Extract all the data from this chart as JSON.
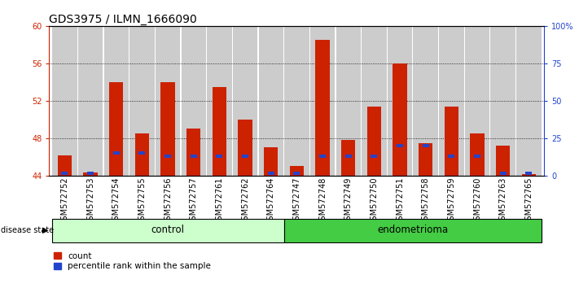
{
  "title": "GDS3975 / ILMN_1666090",
  "samples": [
    "GSM572752",
    "GSM572753",
    "GSM572754",
    "GSM572755",
    "GSM572756",
    "GSM572757",
    "GSM572761",
    "GSM572762",
    "GSM572764",
    "GSM572747",
    "GSM572748",
    "GSM572749",
    "GSM572750",
    "GSM572751",
    "GSM572758",
    "GSM572759",
    "GSM572760",
    "GSM572763",
    "GSM572765"
  ],
  "count_values": [
    46.2,
    44.3,
    54.0,
    48.5,
    54.0,
    49.0,
    53.5,
    50.0,
    47.0,
    45.0,
    58.5,
    47.8,
    51.4,
    56.0,
    47.5,
    51.4,
    48.5,
    47.2,
    44.2
  ],
  "percentile_values": [
    1.5,
    1.5,
    15.0,
    15.0,
    13.0,
    13.0,
    13.0,
    13.0,
    1.5,
    1.5,
    13.0,
    13.0,
    13.0,
    20.0,
    20.0,
    13.0,
    13.0,
    1.5,
    1.5
  ],
  "control_count": 9,
  "endometrioma_count": 10,
  "y_min": 44,
  "y_max": 60,
  "y_ticks": [
    44,
    48,
    52,
    56,
    60
  ],
  "y_right_ticks": [
    0,
    25,
    50,
    75,
    100
  ],
  "y_right_labels": [
    "0",
    "25",
    "50",
    "75",
    "100%"
  ],
  "bar_color": "#cc2200",
  "percentile_color": "#2244cc",
  "control_bg": "#ccffcc",
  "endo_bg": "#44cc44",
  "col_bg": "#cccccc",
  "bar_width": 0.55,
  "percentile_bar_width": 0.25,
  "title_fontsize": 10,
  "tick_fontsize": 7,
  "label_fontsize": 8.5,
  "legend_fontsize": 7.5
}
